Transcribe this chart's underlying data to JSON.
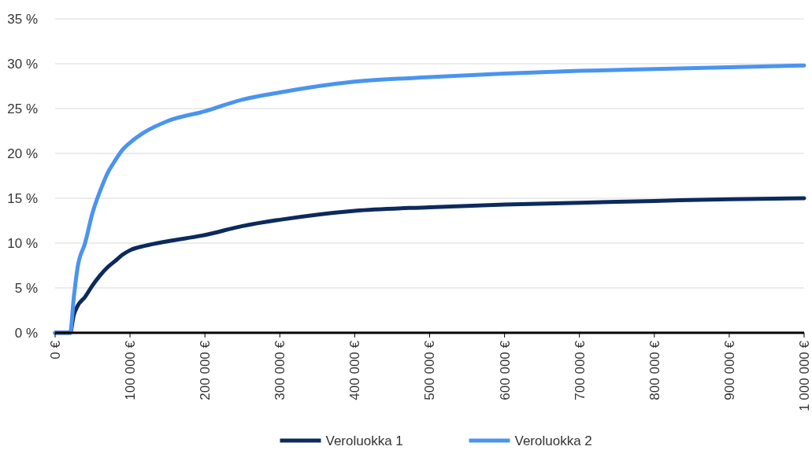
{
  "chart_data": {
    "type": "line",
    "x": [
      0,
      20000,
      25000,
      30000,
      40000,
      50000,
      60000,
      70000,
      80000,
      90000,
      100000,
      120000,
      150000,
      200000,
      250000,
      300000,
      400000,
      500000,
      600000,
      700000,
      800000,
      900000,
      1000000
    ],
    "series": [
      {
        "name": "Veroluokka 1",
        "color": "#0b2a5e",
        "values": [
          0,
          0,
          2.0,
          3.0,
          4.0,
          5.3,
          6.4,
          7.3,
          8.0,
          8.7,
          9.2,
          9.7,
          10.2,
          10.9,
          11.9,
          12.6,
          13.6,
          14.0,
          14.3,
          14.5,
          14.7,
          14.9,
          15.0
        ]
      },
      {
        "name": "Veroluokka 2",
        "color": "#4a94f0",
        "values": [
          0,
          0,
          4.0,
          7.3,
          10.0,
          13.4,
          15.8,
          17.8,
          19.2,
          20.4,
          21.2,
          22.4,
          23.6,
          24.7,
          26.0,
          26.8,
          28.0,
          28.5,
          28.9,
          29.2,
          29.4,
          29.6,
          29.8
        ]
      }
    ],
    "xlim": [
      0,
      1000000
    ],
    "xticks": [
      {
        "value": 0,
        "label": "0 €"
      },
      {
        "value": 100000,
        "label": "100 000 €"
      },
      {
        "value": 200000,
        "label": "200 000 €"
      },
      {
        "value": 300000,
        "label": "300 000 €"
      },
      {
        "value": 400000,
        "label": "400 000 €"
      },
      {
        "value": 500000,
        "label": "500 000 €"
      },
      {
        "value": 600000,
        "label": "600 000 €"
      },
      {
        "value": 700000,
        "label": "700 000 €"
      },
      {
        "value": 800000,
        "label": "800 000 €"
      },
      {
        "value": 900000,
        "label": "900 000 €"
      },
      {
        "value": 1000000,
        "label": "1 000 000 €"
      }
    ],
    "ylim": [
      0,
      35
    ],
    "yticks": [
      {
        "value": 0,
        "label": "0 %"
      },
      {
        "value": 5,
        "label": "5 %"
      },
      {
        "value": 10,
        "label": "10 %"
      },
      {
        "value": 15,
        "label": "15 %"
      },
      {
        "value": 20,
        "label": "20 %"
      },
      {
        "value": 25,
        "label": "25 %"
      },
      {
        "value": 30,
        "label": "30 %"
      },
      {
        "value": 35,
        "label": "35 %"
      }
    ],
    "grid": "y",
    "legend": "bottom",
    "marker": "none",
    "line_style": "solid"
  }
}
